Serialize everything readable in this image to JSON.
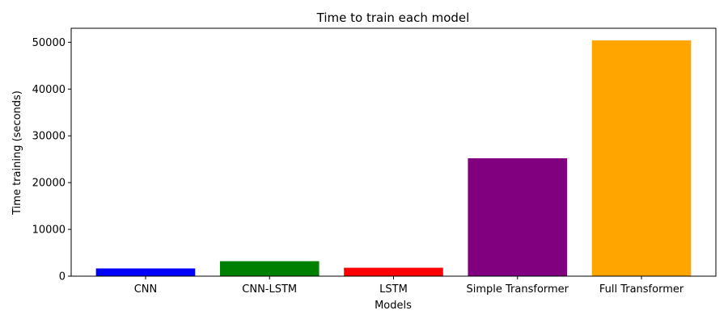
{
  "chart_data": {
    "type": "bar",
    "title": "Time to train each model",
    "xlabel": "Models",
    "ylabel": "Time training (seconds)",
    "categories": [
      "CNN",
      "CNN-LSTM",
      "LSTM",
      "Simple Transformer",
      "Full Transformer"
    ],
    "values": [
      1650,
      3200,
      1800,
      25200,
      50400
    ],
    "colors": [
      "#0000ff",
      "#008000",
      "#ff0000",
      "#800080",
      "#ffa500"
    ],
    "ylim": [
      0,
      53000
    ],
    "yticks": [
      0,
      10000,
      20000,
      30000,
      40000,
      50000
    ],
    "grid": false,
    "legend": "none"
  }
}
